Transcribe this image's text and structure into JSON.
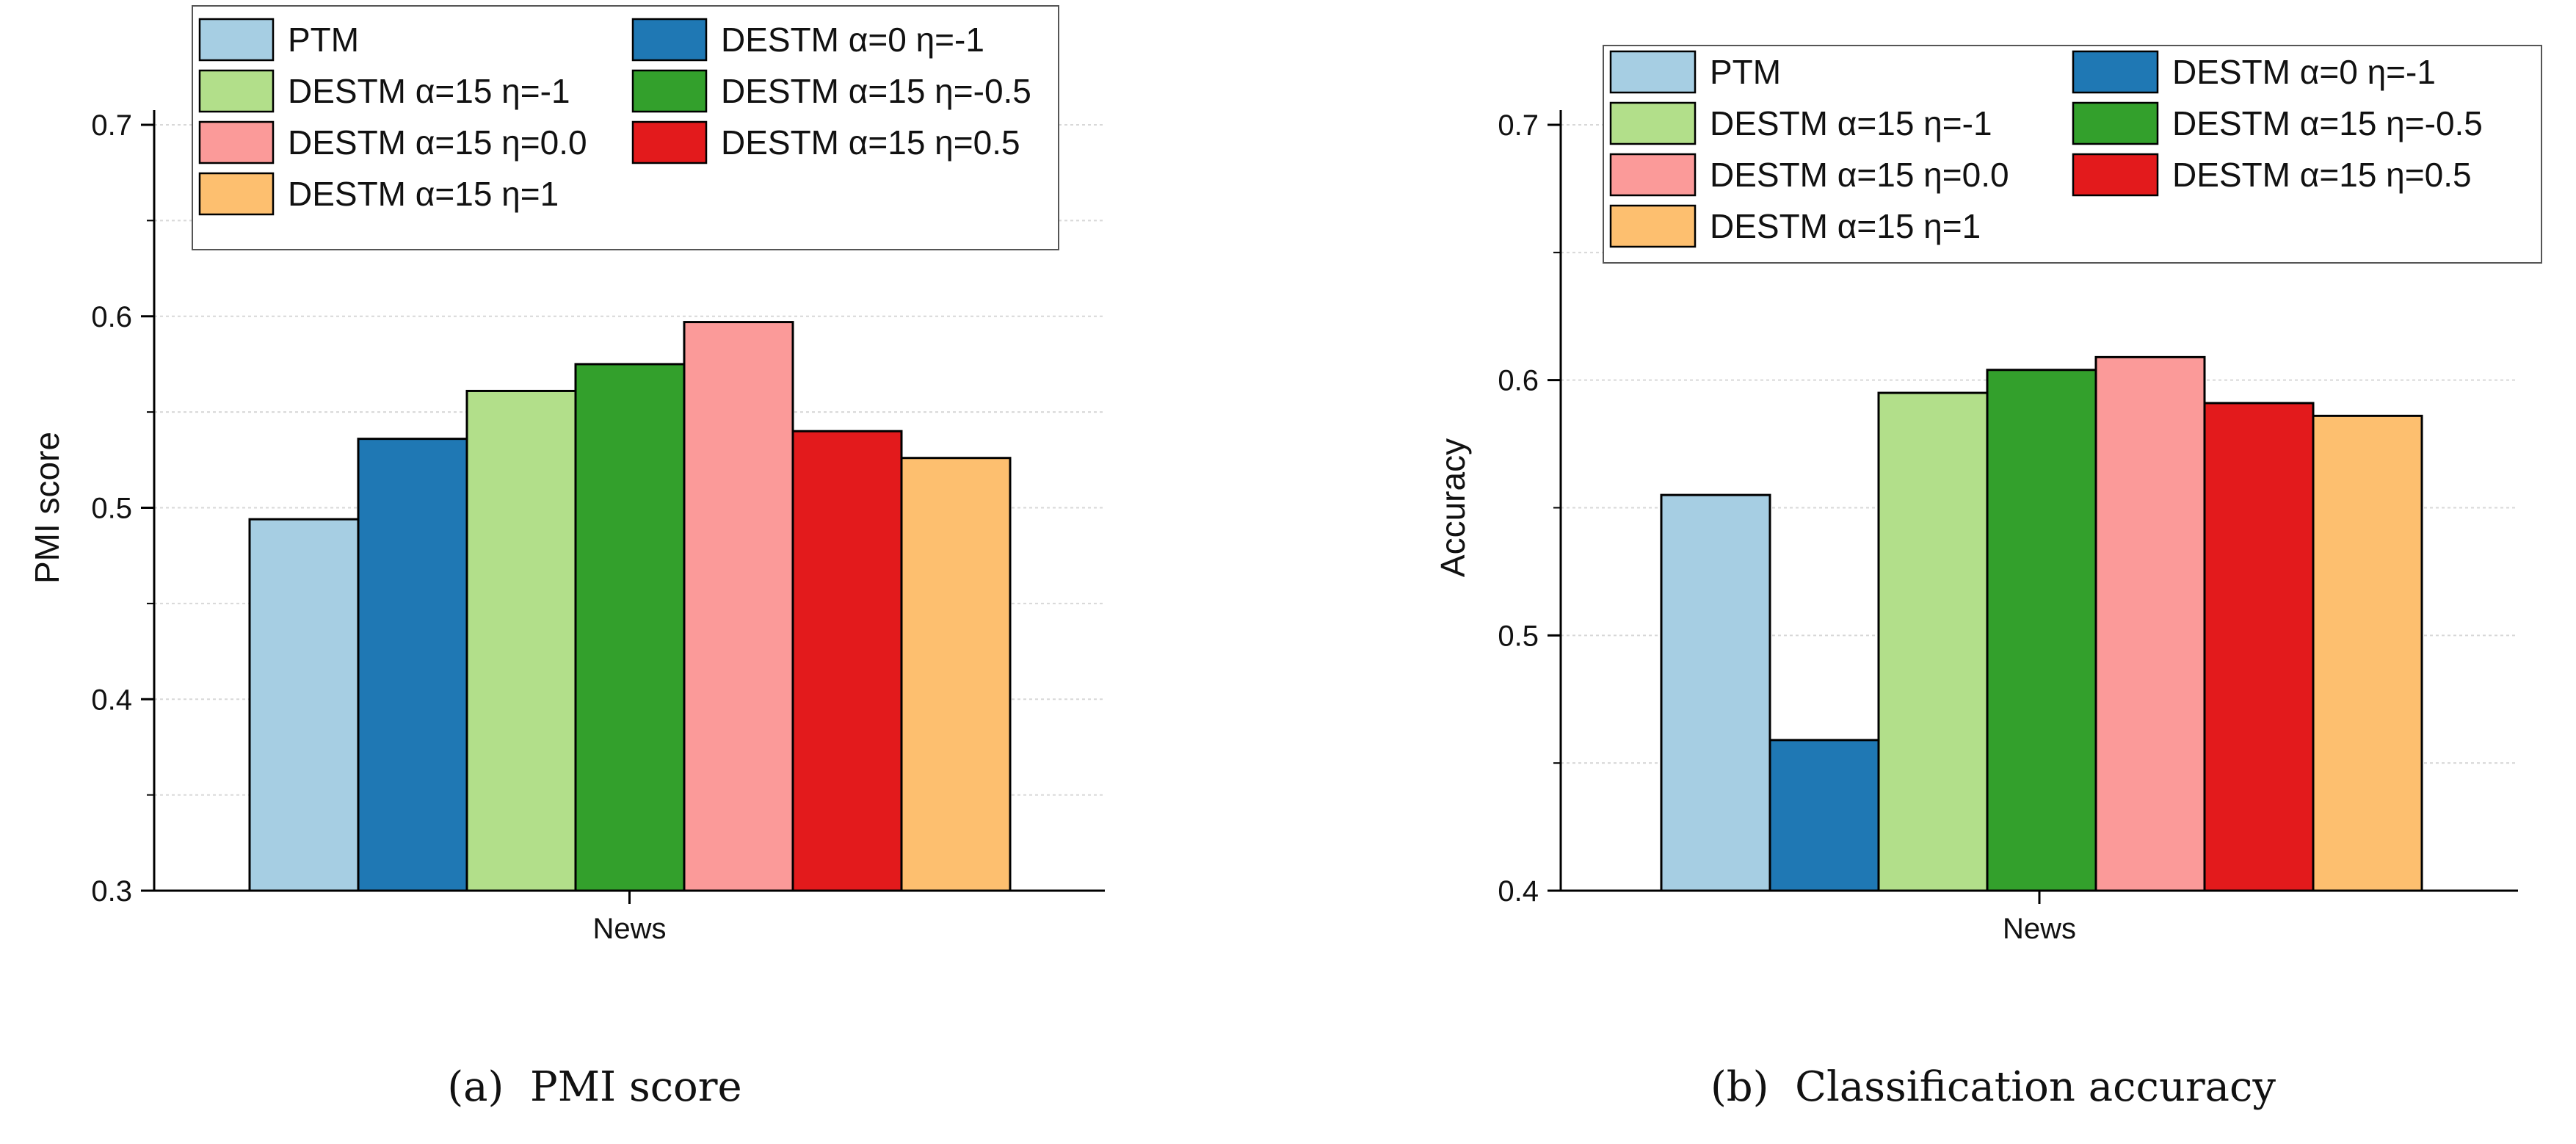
{
  "chart_data": [
    {
      "type": "bar",
      "title": "",
      "xlabel": "",
      "ylabel": "PMI score",
      "categories": [
        "News"
      ],
      "ylim": [
        0.3,
        0.7
      ],
      "yticks": [
        0.3,
        0.4,
        0.5,
        0.6,
        0.7
      ],
      "yticklabels": [
        "0.3",
        "0.4",
        "0.5",
        "0.6",
        "0.7"
      ],
      "grid": true,
      "legend_position": "top",
      "series": [
        {
          "name": "PTM",
          "values": [
            0.494
          ]
        },
        {
          "name": "DESTM α=0 η=-1",
          "values": [
            0.536
          ]
        },
        {
          "name": "DESTM α=15 η=-1",
          "values": [
            0.561
          ]
        },
        {
          "name": "DESTM α=15 η=-0.5",
          "values": [
            0.575
          ]
        },
        {
          "name": "DESTM α=15 η=0.0",
          "values": [
            0.597
          ]
        },
        {
          "name": "DESTM α=15 η=0.5",
          "values": [
            0.54
          ]
        },
        {
          "name": "DESTM α=15 η=1",
          "values": [
            0.526
          ]
        }
      ],
      "caption_label": "(a)",
      "caption_text": "PMI score"
    },
    {
      "type": "bar",
      "title": "",
      "xlabel": "",
      "ylabel": "Accuracy",
      "categories": [
        "News"
      ],
      "ylim": [
        0.4,
        0.7
      ],
      "yticks": [
        0.4,
        0.5,
        0.6,
        0.7
      ],
      "yticklabels": [
        "0.4",
        "0.5",
        "0.6",
        "0.7"
      ],
      "grid": true,
      "legend_position": "top",
      "series": [
        {
          "name": "PTM",
          "values": [
            0.555
          ]
        },
        {
          "name": "DESTM α=0 η=-1",
          "values": [
            0.459
          ]
        },
        {
          "name": "DESTM α=15 η=-1",
          "values": [
            0.595
          ]
        },
        {
          "name": "DESTM α=15 η=-0.5",
          "values": [
            0.604
          ]
        },
        {
          "name": "DESTM α=15 η=0.0",
          "values": [
            0.609
          ]
        },
        {
          "name": "DESTM α=15 η=0.5",
          "values": [
            0.591
          ]
        },
        {
          "name": "DESTM α=15 η=1",
          "values": [
            0.586
          ]
        }
      ],
      "caption_label": "(b)",
      "caption_text": "Classification accuracy"
    }
  ],
  "colors": {
    "PTM": "#a6cee3",
    "DESTM α=0 η=-1": "#1f78b4",
    "DESTM α=15 η=-1": "#b2df8a",
    "DESTM α=15 η=-0.5": "#33a02c",
    "DESTM α=15 η=0.0": "#fb9a99",
    "DESTM α=15 η=0.5": "#e31a1c",
    "DESTM α=15 η=1": "#fdbf6f"
  }
}
